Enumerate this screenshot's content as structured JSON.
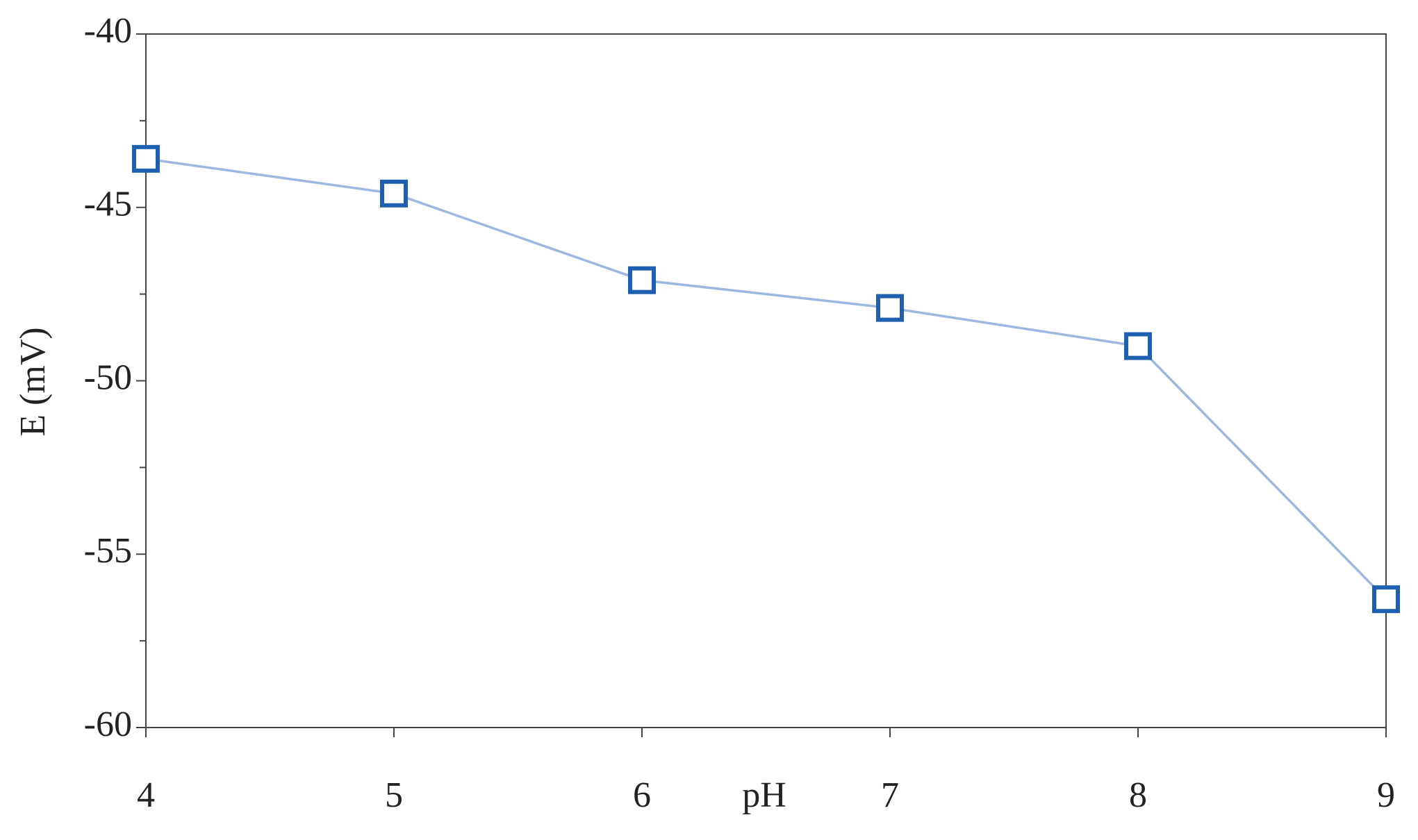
{
  "chart_data": {
    "type": "line",
    "x_label": "pH",
    "y_label": "E (mV)",
    "x": [
      4,
      5,
      6,
      7,
      8,
      9
    ],
    "series": [
      {
        "name": "E",
        "color": "#1f5fb0",
        "line_color": "#9db8e0",
        "values": [
          -43.6,
          -44.6,
          -47.1,
          -47.9,
          -49.0,
          -56.3
        ]
      }
    ],
    "xlim": [
      4,
      9
    ],
    "xticks": [
      4,
      5,
      6,
      7,
      8,
      9
    ],
    "ylim": [
      -60,
      -40
    ],
    "yticks": [
      -40,
      -45,
      -50,
      -55,
      -60
    ],
    "yminorticks": [
      -42.5,
      -47.5,
      -52.5,
      -57.5
    ],
    "marker": "square",
    "grid": false
  }
}
